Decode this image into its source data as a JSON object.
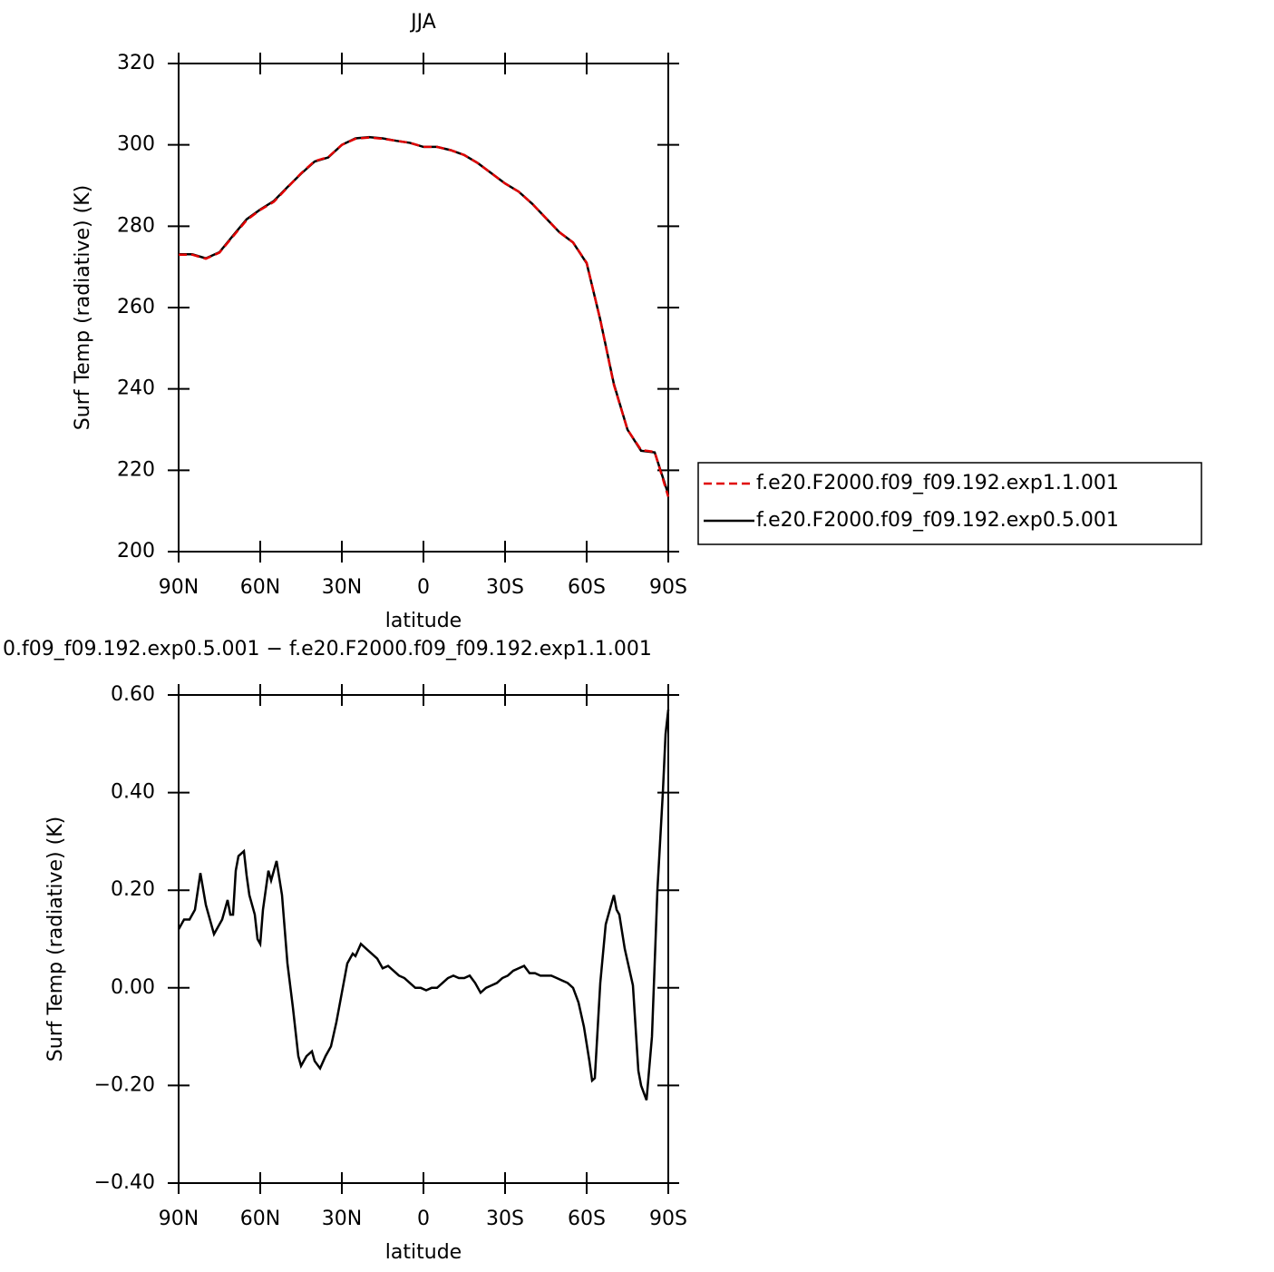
{
  "chart_data": [
    {
      "type": "line",
      "title": "JJA",
      "xlabel": "latitude",
      "ylabel": "Surf Temp (radiative) (K)",
      "x": [
        90,
        85,
        80,
        75,
        70,
        65,
        60,
        55,
        50,
        45,
        40,
        35,
        30,
        25,
        20,
        15,
        10,
        5,
        0,
        -5,
        -10,
        -15,
        -20,
        -25,
        -30,
        -35,
        -40,
        -45,
        -50,
        -55,
        -60,
        -65,
        -70,
        -75,
        -80,
        -85,
        -90
      ],
      "xlim": [
        90,
        -90
      ],
      "xticks": [
        {
          "value": 90,
          "label": "90N"
        },
        {
          "value": 60,
          "label": "60N"
        },
        {
          "value": 30,
          "label": "30N"
        },
        0,
        {
          "value": -30,
          "label": "30S"
        },
        {
          "value": -60,
          "label": "60S"
        },
        {
          "value": -90,
          "label": "90S"
        }
      ],
      "ylim": [
        200,
        320
      ],
      "yticks": [
        200,
        220,
        240,
        260,
        280,
        300,
        320
      ],
      "legend": "right",
      "series": [
        {
          "name": "f.e20.F2000.f09_f09.192.exp1.1.001",
          "color": "#e00000",
          "dash": true,
          "values": [
            273,
            273,
            272,
            273.5,
            277.5,
            281.5,
            284,
            286,
            289.5,
            293,
            296,
            297,
            300,
            301.5,
            301.8,
            301.5,
            301,
            300.5,
            299.5,
            299.5,
            298.7,
            297.5,
            295.5,
            293,
            290.5,
            288.5,
            285.5,
            282,
            278.5,
            276,
            271,
            257,
            241,
            230,
            225,
            224.5,
            213.5
          ]
        },
        {
          "name": "f.e20.F2000.f09_f09.192.exp0.5.001",
          "color": "#000000",
          "dash": false,
          "values": [
            273.1,
            273.1,
            272.1,
            273.6,
            277.7,
            281.7,
            284.1,
            286.2,
            289.6,
            292.9,
            295.9,
            296.9,
            300,
            301.6,
            301.9,
            301.6,
            301,
            300.5,
            299.5,
            299.5,
            298.7,
            297.5,
            295.5,
            293,
            290.5,
            288.5,
            285.5,
            282,
            278.5,
            276,
            270.9,
            257,
            241.2,
            230,
            224.8,
            224.4,
            214.1
          ]
        }
      ]
    },
    {
      "type": "line",
      "title": "0.f09_f09.192.exp0.5.001 − f.e20.F2000.f09_f09.192.exp1.1.001",
      "xlabel": "latitude",
      "ylabel": "Surf Temp (radiative) (K)",
      "x": [
        90,
        88,
        86,
        84,
        82,
        80,
        77,
        74,
        72,
        71,
        70,
        69,
        68,
        66,
        65,
        64,
        62,
        61,
        60,
        59,
        57,
        56,
        54,
        52,
        50,
        48,
        46,
        45,
        43,
        41,
        40,
        38,
        36,
        34,
        32,
        30,
        28,
        26,
        25,
        23,
        21,
        19,
        17,
        15,
        13,
        11,
        9,
        7,
        5,
        3,
        1,
        -1,
        -3,
        -5,
        -7,
        -9,
        -11,
        -13,
        -15,
        -17,
        -19,
        -21,
        -23,
        -25,
        -27,
        -29,
        -31,
        -33,
        -35,
        -37,
        -39,
        -41,
        -43,
        -45,
        -47,
        -49,
        -51,
        -53,
        -55,
        -57,
        -59,
        -61,
        -62,
        -63,
        -65,
        -67,
        -69,
        -70,
        -71,
        -72,
        -74,
        -76,
        -77,
        -79,
        -80,
        -82,
        -84,
        -86,
        -88,
        -89,
        -90
      ],
      "xlim": [
        90,
        -90
      ],
      "xticks": [
        {
          "value": 90,
          "label": "90N"
        },
        {
          "value": 60,
          "label": "60N"
        },
        {
          "value": 30,
          "label": "30N"
        },
        0,
        {
          "value": -30,
          "label": "30S"
        },
        {
          "value": -60,
          "label": "60S"
        },
        {
          "value": -90,
          "label": "90S"
        }
      ],
      "ylim": [
        -0.4,
        0.6
      ],
      "yticks": [
        {
          "value": -0.4,
          "label": "−0.40"
        },
        {
          "value": -0.2,
          "label": "−0.20"
        },
        {
          "value": 0,
          "label": "0.00"
        },
        {
          "value": 0.2,
          "label": "0.20"
        },
        {
          "value": 0.4,
          "label": "0.40"
        },
        {
          "value": 0.6,
          "label": "0.60"
        }
      ],
      "series": [
        {
          "color": "#000000",
          "dash": false,
          "values": [
            0.12,
            0.14,
            0.14,
            0.16,
            0.235,
            0.17,
            0.11,
            0.14,
            0.18,
            0.15,
            0.15,
            0.24,
            0.27,
            0.28,
            0.23,
            0.19,
            0.15,
            0.1,
            0.09,
            0.16,
            0.24,
            0.22,
            0.26,
            0.19,
            0.05,
            -0.04,
            -0.14,
            -0.16,
            -0.14,
            -0.13,
            -0.15,
            -0.165,
            -0.14,
            -0.12,
            -0.07,
            -0.01,
            0.05,
            0.07,
            0.065,
            0.09,
            0.08,
            0.07,
            0.06,
            0.04,
            0.045,
            0.035,
            0.025,
            0.02,
            0.01,
            0,
            0,
            -0.005,
            0,
            0,
            0.01,
            0.02,
            0.025,
            0.02,
            0.02,
            0.025,
            0.01,
            -0.01,
            0,
            0.005,
            0.01,
            0.02,
            0.025,
            0.035,
            0.04,
            0.045,
            0.03,
            0.03,
            0.025,
            0.025,
            0.025,
            0.02,
            0.015,
            0.01,
            0,
            -0.03,
            -0.08,
            -0.15,
            -0.19,
            -0.185,
            0.01,
            0.13,
            0.17,
            0.19,
            0.16,
            0.15,
            0.08,
            0.03,
            0.005,
            -0.17,
            -0.2,
            -0.23,
            -0.1,
            0.2,
            0.4,
            0.52,
            0.57
          ]
        }
      ]
    }
  ]
}
